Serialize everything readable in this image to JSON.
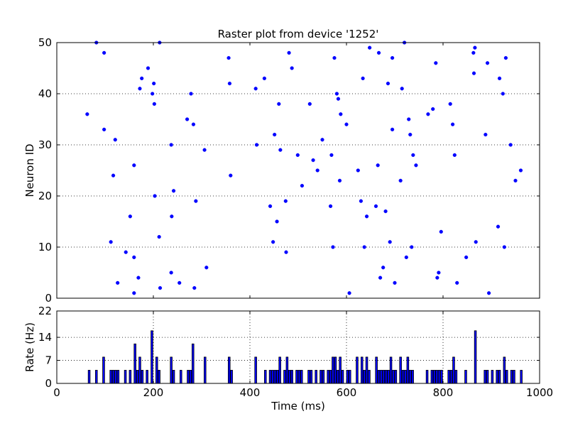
{
  "title": "Raster plot from device '1252'",
  "colors": {
    "marker": "#0000ff",
    "bar_fill": "#0000ff",
    "bar_edge": "#000000",
    "grid": "#000000",
    "axes": "#000000",
    "background": "#ffffff"
  },
  "chart_data": [
    {
      "type": "scatter",
      "name": "raster",
      "title": "Raster plot from device '1252'",
      "xlabel": "",
      "ylabel": "Neuron ID",
      "xlim": [
        0,
        1000
      ],
      "ylim": [
        0,
        50
      ],
      "yticks": [
        "0",
        "10",
        "20",
        "30",
        "40",
        "50"
      ],
      "grid": "horizontal dotted",
      "points": [
        [
          63,
          36
        ],
        [
          82,
          50
        ],
        [
          98,
          48
        ],
        [
          98,
          33
        ],
        [
          112,
          11
        ],
        [
          117,
          24
        ],
        [
          121,
          31
        ],
        [
          126,
          3
        ],
        [
          143,
          9
        ],
        [
          152,
          16
        ],
        [
          160,
          26
        ],
        [
          160,
          8
        ],
        [
          160,
          1
        ],
        [
          169,
          4
        ],
        [
          172,
          41
        ],
        [
          176,
          43
        ],
        [
          189,
          45
        ],
        [
          198,
          40
        ],
        [
          201,
          42
        ],
        [
          202,
          38
        ],
        [
          203,
          20
        ],
        [
          212,
          12
        ],
        [
          213,
          50
        ],
        [
          214,
          2
        ],
        [
          237,
          30
        ],
        [
          237,
          5
        ],
        [
          238,
          16
        ],
        [
          242,
          21
        ],
        [
          254,
          3
        ],
        [
          270,
          35
        ],
        [
          278,
          40
        ],
        [
          283,
          34
        ],
        [
          285,
          2
        ],
        [
          288,
          19
        ],
        [
          306,
          29
        ],
        [
          310,
          6
        ],
        [
          356,
          47
        ],
        [
          358,
          42
        ],
        [
          360,
          24
        ],
        [
          412,
          41
        ],
        [
          414,
          30
        ],
        [
          430,
          43
        ],
        [
          442,
          18
        ],
        [
          448,
          11
        ],
        [
          451,
          32
        ],
        [
          456,
          15
        ],
        [
          460,
          38
        ],
        [
          463,
          29
        ],
        [
          474,
          19
        ],
        [
          475,
          9
        ],
        [
          481,
          48
        ],
        [
          487,
          45
        ],
        [
          499,
          28
        ],
        [
          508,
          22
        ],
        [
          524,
          38
        ],
        [
          531,
          27
        ],
        [
          540,
          25
        ],
        [
          550,
          31
        ],
        [
          567,
          18
        ],
        [
          569,
          28
        ],
        [
          572,
          10
        ],
        [
          575,
          47
        ],
        [
          580,
          40
        ],
        [
          583,
          39
        ],
        [
          586,
          23
        ],
        [
          588,
          36
        ],
        [
          600,
          34
        ],
        [
          606,
          1
        ],
        [
          624,
          25
        ],
        [
          630,
          19
        ],
        [
          634,
          43
        ],
        [
          637,
          10
        ],
        [
          642,
          16
        ],
        [
          648,
          49
        ],
        [
          661,
          18
        ],
        [
          665,
          26
        ],
        [
          667,
          48
        ],
        [
          670,
          4
        ],
        [
          676,
          6
        ],
        [
          681,
          17
        ],
        [
          686,
          42
        ],
        [
          690,
          11
        ],
        [
          695,
          47
        ],
        [
          695,
          33
        ],
        [
          700,
          3
        ],
        [
          712,
          23
        ],
        [
          715,
          41
        ],
        [
          720,
          50
        ],
        [
          724,
          8
        ],
        [
          729,
          35
        ],
        [
          732,
          32
        ],
        [
          735,
          10
        ],
        [
          738,
          28
        ],
        [
          744,
          26
        ],
        [
          769,
          36
        ],
        [
          779,
          37
        ],
        [
          785,
          46
        ],
        [
          788,
          4
        ],
        [
          791,
          5
        ],
        [
          796,
          13
        ],
        [
          815,
          38
        ],
        [
          820,
          34
        ],
        [
          824,
          28
        ],
        [
          829,
          3
        ],
        [
          848,
          8
        ],
        [
          863,
          48
        ],
        [
          864,
          44
        ],
        [
          866,
          49
        ],
        [
          868,
          11
        ],
        [
          888,
          32
        ],
        [
          892,
          46
        ],
        [
          895,
          1
        ],
        [
          914,
          14
        ],
        [
          917,
          43
        ],
        [
          924,
          40
        ],
        [
          927,
          10
        ],
        [
          930,
          47
        ],
        [
          940,
          30
        ],
        [
          950,
          23
        ],
        [
          961,
          25
        ]
      ]
    },
    {
      "type": "bar",
      "name": "rate",
      "xlabel": "Time (ms)",
      "ylabel": "Rate (Hz)",
      "xlim": [
        0,
        1000
      ],
      "ylim": [
        0,
        22
      ],
      "xticks": [
        "0",
        "200",
        "400",
        "600",
        "800",
        "1000"
      ],
      "yticks": [
        "0",
        "7",
        "14",
        "22"
      ],
      "ytick_values": [
        0,
        7,
        14,
        22
      ],
      "grid": "both dotted",
      "bin_width_ms": 5,
      "bins": [
        [
          65,
          4
        ],
        [
          80,
          4
        ],
        [
          95,
          8
        ],
        [
          110,
          4
        ],
        [
          115,
          4
        ],
        [
          120,
          4
        ],
        [
          125,
          4
        ],
        [
          140,
          4
        ],
        [
          150,
          4
        ],
        [
          160,
          12
        ],
        [
          165,
          4
        ],
        [
          170,
          8
        ],
        [
          175,
          4
        ],
        [
          185,
          4
        ],
        [
          195,
          16
        ],
        [
          205,
          8
        ],
        [
          210,
          4
        ],
        [
          235,
          8
        ],
        [
          240,
          4
        ],
        [
          255,
          4
        ],
        [
          270,
          4
        ],
        [
          275,
          4
        ],
        [
          280,
          12
        ],
        [
          305,
          8
        ],
        [
          355,
          8
        ],
        [
          360,
          4
        ],
        [
          410,
          8
        ],
        [
          430,
          4
        ],
        [
          440,
          4
        ],
        [
          445,
          4
        ],
        [
          450,
          4
        ],
        [
          455,
          4
        ],
        [
          460,
          8
        ],
        [
          470,
          4
        ],
        [
          475,
          8
        ],
        [
          480,
          4
        ],
        [
          485,
          4
        ],
        [
          495,
          4
        ],
        [
          500,
          4
        ],
        [
          505,
          4
        ],
        [
          520,
          4
        ],
        [
          525,
          4
        ],
        [
          535,
          4
        ],
        [
          545,
          4
        ],
        [
          550,
          4
        ],
        [
          560,
          4
        ],
        [
          565,
          4
        ],
        [
          570,
          8
        ],
        [
          575,
          8
        ],
        [
          580,
          4
        ],
        [
          585,
          8
        ],
        [
          590,
          4
        ],
        [
          600,
          4
        ],
        [
          605,
          4
        ],
        [
          620,
          8
        ],
        [
          630,
          8
        ],
        [
          635,
          4
        ],
        [
          640,
          8
        ],
        [
          645,
          4
        ],
        [
          660,
          8
        ],
        [
          665,
          4
        ],
        [
          670,
          4
        ],
        [
          675,
          4
        ],
        [
          680,
          4
        ],
        [
          685,
          4
        ],
        [
          690,
          8
        ],
        [
          695,
          4
        ],
        [
          700,
          4
        ],
        [
          710,
          8
        ],
        [
          715,
          4
        ],
        [
          720,
          4
        ],
        [
          725,
          8
        ],
        [
          730,
          4
        ],
        [
          735,
          4
        ],
        [
          765,
          4
        ],
        [
          775,
          4
        ],
        [
          780,
          4
        ],
        [
          785,
          4
        ],
        [
          790,
          4
        ],
        [
          795,
          4
        ],
        [
          810,
          4
        ],
        [
          815,
          4
        ],
        [
          820,
          8
        ],
        [
          825,
          4
        ],
        [
          845,
          4
        ],
        [
          865,
          16
        ],
        [
          885,
          4
        ],
        [
          890,
          4
        ],
        [
          900,
          4
        ],
        [
          910,
          4
        ],
        [
          915,
          4
        ],
        [
          925,
          8
        ],
        [
          930,
          4
        ],
        [
          940,
          4
        ],
        [
          945,
          4
        ],
        [
          960,
          4
        ]
      ]
    }
  ]
}
